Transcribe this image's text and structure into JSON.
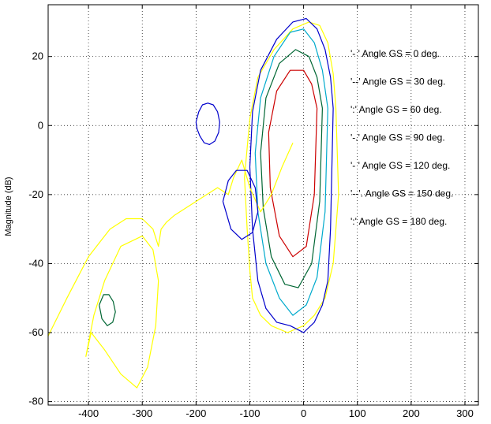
{
  "chart_data": {
    "type": "line",
    "title": "",
    "xlabel": "",
    "ylabel": "Magnitude (dB)",
    "xlim": [
      -475,
      325
    ],
    "ylim": [
      -81,
      35
    ],
    "xticks": [
      -400,
      -300,
      -200,
      -100,
      0,
      100,
      200,
      300
    ],
    "yticks": [
      -80,
      -60,
      -40,
      -20,
      0,
      20
    ],
    "grid": true,
    "legend_position": "right",
    "legend": [
      {
        "label": "'- '  Angle GS = 0 deg.",
        "color": "#0000cc"
      },
      {
        "label": "'--'  Angle GS = 30 deg.",
        "color": "#006633"
      },
      {
        "label": "':'  Angle GS = 60 deg.",
        "color": "#cc0000"
      },
      {
        "label": "'-.'  Angle GS = 90 deg.",
        "color": "#00aacc"
      },
      {
        "label": "'- '  Angle GS = 120 deg.",
        "color": "#cc00cc"
      },
      {
        "label": "'--'. Angle GS = 150 deg.",
        "color": "#888800"
      },
      {
        "label": "':'  Angle GS = 180 deg.",
        "color": "#000000"
      }
    ],
    "series": [
      {
        "color": "#ffff00",
        "x": [
          60,
          55,
          45,
          30,
          10,
          -20,
          -55,
          -85,
          -100,
          -110,
          -105,
          -100,
          -95,
          -80,
          -60,
          -30,
          0,
          20,
          40,
          55,
          65,
          60
        ],
        "y": [
          5,
          15,
          24,
          29,
          30,
          28,
          22,
          14,
          2,
          -15,
          -30,
          -42,
          -50,
          -55,
          -58,
          -60,
          -58,
          -55,
          -50,
          -40,
          -20,
          5
        ]
      },
      {
        "color": "#0000cc",
        "x": [
          55,
          50,
          40,
          25,
          5,
          -20,
          -50,
          -80,
          -95,
          -100,
          -95,
          -85,
          -70,
          -50,
          -25,
          0,
          20,
          35,
          45,
          50,
          55
        ],
        "y": [
          5,
          14,
          22,
          28,
          31,
          30,
          25,
          16,
          4,
          -12,
          -30,
          -45,
          -53,
          -57,
          -58,
          -60,
          -57,
          -52,
          -45,
          -30,
          5
        ]
      },
      {
        "color": "#00aacc",
        "x": [
          45,
          35,
          20,
          0,
          -25,
          -55,
          -80,
          -90,
          -85,
          -70,
          -45,
          -20,
          5,
          25,
          40,
          45
        ],
        "y": [
          5,
          16,
          24,
          28,
          27,
          20,
          8,
          -8,
          -25,
          -40,
          -50,
          -55,
          -52,
          -44,
          -25,
          5
        ]
      },
      {
        "color": "#006633",
        "x": [
          35,
          25,
          10,
          -15,
          -45,
          -70,
          -80,
          -75,
          -60,
          -35,
          -10,
          15,
          30,
          35
        ],
        "y": [
          5,
          14,
          20,
          22,
          18,
          8,
          -8,
          -24,
          -38,
          -46,
          -47,
          -40,
          -22,
          5
        ]
      },
      {
        "color": "#cc0000",
        "x": [
          25,
          15,
          0,
          -25,
          -50,
          -65,
          -62,
          -45,
          -20,
          5,
          20,
          25
        ],
        "y": [
          5,
          12,
          16,
          16,
          10,
          -2,
          -18,
          -32,
          -38,
          -35,
          -20,
          5
        ]
      },
      {
        "color": "#ffff00",
        "x": [
          -475,
          -440,
          -400,
          -360,
          -330,
          -300,
          -280,
          -270,
          -265,
          -255,
          -240,
          -200,
          -160,
          -140,
          -130,
          -115,
          -100,
          -80,
          -60,
          -40,
          -20
        ],
        "y": [
          -61,
          -50,
          -38,
          -30,
          -27,
          -27,
          -30,
          -35,
          -30,
          -28,
          -26,
          -22,
          -18,
          -20,
          -15,
          -10,
          -18,
          -25,
          -20,
          -12,
          -5
        ]
      },
      {
        "color": "#ffff00",
        "x": [
          -405,
          -390,
          -370,
          -340,
          -300,
          -280,
          -270,
          -275,
          -290,
          -310,
          -340,
          -370,
          -395,
          -405
        ],
        "y": [
          -67,
          -55,
          -45,
          -35,
          -32,
          -36,
          -45,
          -58,
          -70,
          -76,
          -72,
          -65,
          -60,
          -67
        ]
      },
      {
        "color": "#0000cc",
        "x": [
          -200,
          -195,
          -188,
          -178,
          -168,
          -160,
          -156,
          -158,
          -165,
          -175,
          -185,
          -193,
          -198,
          -200
        ],
        "y": [
          1,
          4,
          6,
          6.5,
          6,
          4,
          1,
          -2,
          -4.5,
          -5.5,
          -5,
          -3,
          -1,
          1
        ]
      },
      {
        "color": "#0000cc",
        "x": [
          -150,
          -140,
          -125,
          -105,
          -90,
          -85,
          -95,
          -115,
          -135,
          -150
        ],
        "y": [
          -22,
          -16,
          -13,
          -13,
          -18,
          -25,
          -31,
          -33,
          -30,
          -22
        ]
      },
      {
        "color": "#006633",
        "x": [
          -380,
          -372,
          -362,
          -354,
          -350,
          -355,
          -365,
          -375,
          -380
        ],
        "y": [
          -52,
          -49,
          -49,
          -51,
          -54,
          -57,
          -58,
          -56,
          -52
        ]
      }
    ]
  }
}
